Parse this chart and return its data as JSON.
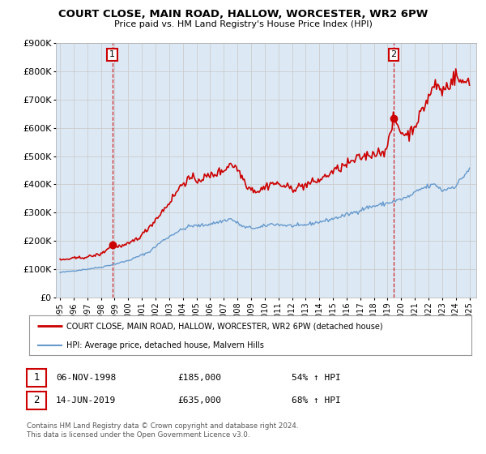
{
  "title": "COURT CLOSE, MAIN ROAD, HALLOW, WORCESTER, WR2 6PW",
  "subtitle": "Price paid vs. HM Land Registry's House Price Index (HPI)",
  "sale1_label": "06-NOV-1998",
  "sale1_price": 185000,
  "sale1_price_str": "£185,000",
  "sale1_pct": "54% ↑ HPI",
  "sale1_x": 1998.84,
  "sale2_label": "14-JUN-2019",
  "sale2_price": 635000,
  "sale2_price_str": "£635,000",
  "sale2_pct": "68% ↑ HPI",
  "sale2_x": 2019.45,
  "legend_line1": "COURT CLOSE, MAIN ROAD, HALLOW, WORCESTER, WR2 6PW (detached house)",
  "legend_line2": "HPI: Average price, detached house, Malvern Hills",
  "footer1": "Contains HM Land Registry data © Crown copyright and database right 2024.",
  "footer2": "This data is licensed under the Open Government Licence v3.0.",
  "red_color": "#cc0000",
  "blue_color": "#6699cc",
  "bg_color": "#dce9f5",
  "plot_bg": "#ffffff",
  "grid_color": "#cccccc",
  "ylim": [
    0,
    900000
  ],
  "yticks": [
    0,
    100000,
    200000,
    300000,
    400000,
    500000,
    600000,
    700000,
    800000,
    900000
  ],
  "ytick_labels": [
    "£0",
    "£100K",
    "£200K",
    "£300K",
    "£400K",
    "£500K",
    "£600K",
    "£700K",
    "£800K",
    "£900K"
  ],
  "xlim_start": 1994.7,
  "xlim_end": 2025.5,
  "hpi_anchors": {
    "1995.0": 88000,
    "1997.0": 100000,
    "1998.0": 107000,
    "1999.0": 118000,
    "2000.0": 130000,
    "2001.5": 160000,
    "2002.5": 200000,
    "2003.5": 230000,
    "2004.5": 252000,
    "2005.5": 255000,
    "2006.5": 265000,
    "2007.5": 278000,
    "2008.5": 248000,
    "2009.5": 245000,
    "2010.5": 260000,
    "2011.5": 255000,
    "2012.5": 252000,
    "2013.5": 262000,
    "2014.5": 272000,
    "2015.5": 285000,
    "2016.5": 300000,
    "2017.5": 318000,
    "2018.5": 328000,
    "2019.5": 340000,
    "2020.5": 355000,
    "2021.5": 385000,
    "2022.5": 400000,
    "2023.0": 378000,
    "2024.0": 395000,
    "2025.0": 455000
  },
  "prop_anchors": {
    "1995.0": 132000,
    "1996.0": 138000,
    "1997.0": 143000,
    "1997.5": 148000,
    "1998.0": 153000,
    "1998.84": 185000,
    "1999.5": 180000,
    "2000.0": 188000,
    "2001.0": 220000,
    "2002.0": 275000,
    "2003.0": 335000,
    "2004.0": 405000,
    "2004.5": 420000,
    "2005.0": 415000,
    "2006.0": 430000,
    "2007.0": 450000,
    "2007.5": 475000,
    "2008.0": 455000,
    "2008.8": 390000,
    "2009.5": 375000,
    "2010.0": 390000,
    "2010.5": 405000,
    "2011.0": 400000,
    "2012.0": 385000,
    "2013.0": 398000,
    "2014.0": 415000,
    "2015.0": 445000,
    "2016.0": 470000,
    "2017.0": 495000,
    "2018.0": 510000,
    "2018.5": 515000,
    "2019.0": 530000,
    "2019.45": 635000,
    "2020.0": 585000,
    "2020.5": 575000,
    "2021.0": 610000,
    "2021.5": 655000,
    "2022.0": 710000,
    "2022.5": 755000,
    "2023.0": 730000,
    "2023.5": 755000,
    "2024.0": 785000,
    "2024.5": 755000,
    "2025.0": 775000
  }
}
